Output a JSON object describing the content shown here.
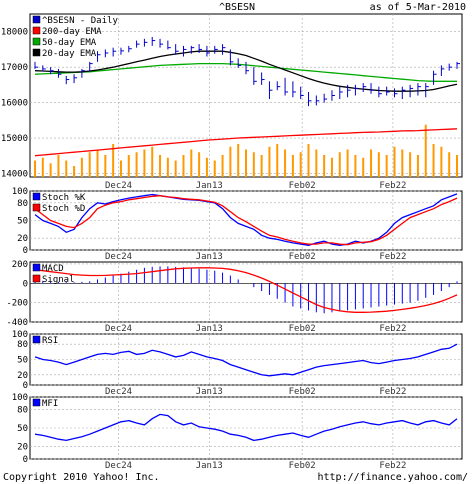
{
  "header": {
    "symbol": "^BSESN",
    "as_of": "as of  5-Mar-2010"
  },
  "footer": {
    "copyright": "Copyright 2010 Yahoo! Inc.",
    "url": "http://finance.yahoo.com/"
  },
  "colors": {
    "price": "#0000cc",
    "ema200": "#ff0000",
    "ema50": "#00aa00",
    "ema20": "#000000",
    "volume": "#ff9900",
    "stoch_k": "#0000ff",
    "stoch_d": "#ff0000",
    "macd": "#0000ff",
    "signal": "#ff0000",
    "rsi": "#0000ff",
    "mfi": "#0000ff",
    "grid": "#aaaaaa",
    "frame": "#000000",
    "x_label": "#333333"
  },
  "x_ticks": [
    "Dec24",
    "Jan13",
    "Feb02",
    "Feb22"
  ],
  "chart_data": [
    {
      "type": "line",
      "panel": "price",
      "legend": [
        "^BSESN - Daily",
        "200-day EMA",
        "50-day EMA",
        "20-day EMA"
      ],
      "y_ticks": [
        "18000",
        "17000",
        "16000",
        "15000",
        "14000"
      ],
      "ylim": [
        13900,
        18500
      ],
      "grid": true,
      "x": [
        "Dec 14",
        "Dec 15",
        "Dec 16",
        "Dec 17",
        "Dec 18",
        "Dec 21",
        "Dec 22",
        "Dec 23",
        "Dec 24",
        "Dec 29",
        "Dec 30",
        "Dec 31",
        "Jan 4",
        "Jan 5",
        "Jan 6",
        "Jan 7",
        "Jan 8",
        "Jan 11",
        "Jan 12",
        "Jan 13",
        "Jan 14",
        "Jan 15",
        "Jan 18",
        "Jan 19",
        "Jan 20",
        "Jan 21",
        "Jan 22",
        "Jan 25",
        "Jan 27",
        "Jan 28",
        "Jan 29",
        "Feb 1",
        "Feb 2",
        "Feb 3",
        "Feb 4",
        "Feb 5",
        "Feb 8",
        "Feb 9",
        "Feb 10",
        "Feb 11",
        "Feb 15",
        "Feb 16",
        "Feb 17",
        "Feb 18",
        "Feb 19",
        "Feb 22",
        "Feb 23",
        "Feb 24",
        "Feb 25",
        "Feb 26",
        "Mar 1",
        "Mar 2",
        "Mar 3",
        "Mar 4",
        "Mar 5"
      ],
      "series": [
        {
          "name": "^BSESN - Daily",
          "kind": "bars",
          "low": [
            16950,
            16880,
            16800,
            16700,
            16520,
            16550,
            16700,
            16880,
            17150,
            17280,
            17300,
            17350,
            17420,
            17550,
            17580,
            17600,
            17550,
            17500,
            17350,
            17300,
            17380,
            17400,
            17300,
            17380,
            17350,
            17050,
            16980,
            16800,
            16500,
            16500,
            16100,
            16350,
            16200,
            16150,
            16100,
            15900,
            15920,
            16000,
            16050,
            16100,
            16150,
            16200,
            16300,
            16250,
            16150,
            16200,
            16150,
            16100,
            16150,
            16200,
            16150,
            16500,
            16750,
            16900,
            16950
          ],
          "high": [
            17150,
            17050,
            17000,
            16950,
            16750,
            16800,
            16950,
            17150,
            17450,
            17500,
            17550,
            17550,
            17600,
            17750,
            17800,
            17850,
            17800,
            17750,
            17650,
            17600,
            17600,
            17650,
            17600,
            17600,
            17650,
            17500,
            17250,
            17150,
            17000,
            16850,
            16600,
            16600,
            16700,
            16600,
            16450,
            16300,
            16200,
            16250,
            16350,
            16450,
            16500,
            16500,
            16550,
            16550,
            16450,
            16450,
            16400,
            16450,
            16500,
            16550,
            16550,
            16900,
            17050,
            17100,
            17150
          ],
          "close": [
            17000,
            16950,
            16900,
            16800,
            16650,
            16700,
            16900,
            17100,
            17350,
            17400,
            17450,
            17460,
            17520,
            17650,
            17700,
            17750,
            17650,
            17550,
            17450,
            17500,
            17550,
            17500,
            17400,
            17500,
            17550,
            17150,
            17050,
            16900,
            16600,
            16650,
            16350,
            16450,
            16300,
            16300,
            16200,
            16050,
            16050,
            16100,
            16200,
            16300,
            16350,
            16400,
            16450,
            16350,
            16250,
            16300,
            16250,
            16350,
            16400,
            16450,
            16450,
            16800,
            16950,
            17000,
            17100
          ]
        },
        {
          "name": "200-day EMA",
          "values": [
            14500,
            14520,
            14540,
            14560,
            14580,
            14600,
            14620,
            14640,
            14660,
            14680,
            14700,
            14720,
            14740,
            14760,
            14780,
            14800,
            14820,
            14840,
            14860,
            14880,
            14900,
            14920,
            14940,
            14955,
            14970,
            14985,
            15000,
            15010,
            15020,
            15030,
            15040,
            15050,
            15060,
            15070,
            15080,
            15090,
            15100,
            15110,
            15120,
            15130,
            15140,
            15150,
            15160,
            15165,
            15170,
            15180,
            15190,
            15200,
            15205,
            15210,
            15220,
            15230,
            15240,
            15250,
            15260
          ]
        },
        {
          "name": "50-day EMA",
          "values": [
            16800,
            16810,
            16820,
            16830,
            16840,
            16850,
            16860,
            16870,
            16890,
            16910,
            16930,
            16950,
            16970,
            16990,
            17010,
            17030,
            17050,
            17060,
            17070,
            17080,
            17090,
            17100,
            17100,
            17100,
            17100,
            17090,
            17080,
            17060,
            17040,
            17020,
            17000,
            16980,
            16960,
            16940,
            16920,
            16900,
            16880,
            16860,
            16840,
            16820,
            16800,
            16780,
            16760,
            16740,
            16720,
            16700,
            16680,
            16660,
            16640,
            16620,
            16610,
            16600,
            16600,
            16600,
            16600
          ]
        },
        {
          "name": "20-day EMA",
          "values": [
            16900,
            16890,
            16880,
            16870,
            16860,
            16860,
            16870,
            16890,
            16920,
            16960,
            17000,
            17050,
            17100,
            17150,
            17200,
            17250,
            17300,
            17340,
            17370,
            17400,
            17430,
            17450,
            17450,
            17450,
            17450,
            17420,
            17380,
            17330,
            17250,
            17170,
            17080,
            17000,
            16920,
            16840,
            16760,
            16680,
            16610,
            16550,
            16500,
            16460,
            16430,
            16400,
            16380,
            16360,
            16340,
            16330,
            16320,
            16320,
            16320,
            16330,
            16340,
            16370,
            16420,
            16470,
            16520
          ]
        }
      ]
    },
    {
      "type": "bar",
      "panel": "volume",
      "series": [
        {
          "name": "Volume",
          "values": [
            0.3,
            0.35,
            0.25,
            0.4,
            0.3,
            0.2,
            0.35,
            0.45,
            0.5,
            0.4,
            0.6,
            0.3,
            0.4,
            0.45,
            0.5,
            0.55,
            0.4,
            0.35,
            0.3,
            0.4,
            0.5,
            0.45,
            0.35,
            0.3,
            0.4,
            0.55,
            0.6,
            0.5,
            0.45,
            0.4,
            0.55,
            0.6,
            0.5,
            0.4,
            0.45,
            0.6,
            0.5,
            0.4,
            0.35,
            0.45,
            0.5,
            0.4,
            0.35,
            0.5,
            0.45,
            0.4,
            0.55,
            0.5,
            0.45,
            0.4,
            0.95,
            0.6,
            0.55,
            0.45,
            0.4
          ]
        }
      ]
    },
    {
      "type": "line",
      "panel": "stochastic",
      "legend": [
        "Stoch %K",
        "Stoch %D"
      ],
      "y_ticks": [
        "100",
        "80",
        "50",
        "20",
        "0"
      ],
      "ylim": [
        0,
        100
      ],
      "grid": true,
      "series": [
        {
          "name": "Stoch %K",
          "values": [
            60,
            50,
            45,
            40,
            30,
            35,
            55,
            70,
            80,
            78,
            82,
            85,
            88,
            90,
            92,
            94,
            92,
            90,
            88,
            86,
            85,
            84,
            82,
            80,
            70,
            55,
            45,
            40,
            35,
            25,
            20,
            18,
            15,
            12,
            10,
            8,
            12,
            15,
            10,
            8,
            10,
            15,
            12,
            15,
            20,
            30,
            45,
            55,
            60,
            65,
            70,
            75,
            85,
            90,
            95
          ]
        },
        {
          "name": "Stoch %D",
          "values": [
            70,
            60,
            50,
            45,
            40,
            38,
            45,
            55,
            70,
            76,
            80,
            82,
            85,
            87,
            89,
            91,
            92,
            90,
            89,
            87,
            86,
            85,
            83,
            81,
            75,
            65,
            55,
            48,
            40,
            32,
            25,
            22,
            18,
            15,
            12,
            10,
            10,
            12,
            12,
            10,
            9,
            12,
            13,
            14,
            18,
            25,
            35,
            45,
            55,
            60,
            65,
            70,
            77,
            82,
            88
          ]
        }
      ]
    },
    {
      "type": "line",
      "panel": "macd",
      "legend": [
        "MACD",
        "Signal"
      ],
      "y_ticks": [
        "200",
        "0",
        "-200",
        "-400"
      ],
      "ylim": [
        -400,
        220
      ],
      "grid": true,
      "series": [
        {
          "name": "MACD",
          "kind": "histogram",
          "values": [
            30,
            25,
            20,
            15,
            12,
            10,
            15,
            20,
            40,
            60,
            80,
            100,
            120,
            140,
            160,
            170,
            175,
            175,
            170,
            165,
            160,
            150,
            140,
            130,
            110,
            80,
            40,
            0,
            -40,
            -80,
            -120,
            -160,
            -200,
            -240,
            -260,
            -280,
            -300,
            -310,
            -300,
            -290,
            -280,
            -270,
            -260,
            -250,
            -240,
            -230,
            -220,
            -210,
            -200,
            -180,
            -150,
            -120,
            -80,
            -40,
            20
          ]
        },
        {
          "name": "Signal",
          "values": [
            140,
            130,
            120,
            110,
            100,
            90,
            85,
            80,
            80,
            82,
            86,
            90,
            95,
            100,
            110,
            120,
            130,
            140,
            150,
            155,
            158,
            160,
            160,
            158,
            154,
            145,
            130,
            110,
            85,
            55,
            20,
            -20,
            -60,
            -100,
            -140,
            -180,
            -220,
            -250,
            -270,
            -285,
            -295,
            -300,
            -300,
            -298,
            -294,
            -288,
            -280,
            -270,
            -258,
            -245,
            -230,
            -210,
            -185,
            -155,
            -120
          ]
        }
      ]
    },
    {
      "type": "line",
      "panel": "rsi",
      "legend": [
        "RSI"
      ],
      "y_ticks": [
        "100",
        "80",
        "50",
        "20",
        "0"
      ],
      "ylim": [
        0,
        100
      ],
      "grid": true,
      "series": [
        {
          "name": "RSI",
          "values": [
            55,
            50,
            48,
            45,
            40,
            45,
            50,
            55,
            60,
            62,
            60,
            64,
            66,
            60,
            62,
            68,
            65,
            60,
            55,
            58,
            65,
            60,
            55,
            52,
            48,
            40,
            35,
            30,
            25,
            20,
            18,
            20,
            22,
            20,
            25,
            30,
            35,
            38,
            40,
            42,
            44,
            46,
            48,
            44,
            42,
            45,
            48,
            50,
            52,
            55,
            60,
            65,
            70,
            72,
            80
          ]
        }
      ]
    },
    {
      "type": "line",
      "panel": "mfi",
      "legend": [
        "MFI"
      ],
      "y_ticks": [
        "100",
        "80",
        "50",
        "20",
        "0"
      ],
      "ylim": [
        0,
        100
      ],
      "grid": true,
      "series": [
        {
          "name": "MFI",
          "values": [
            40,
            38,
            35,
            32,
            30,
            33,
            36,
            40,
            45,
            50,
            55,
            60,
            62,
            58,
            55,
            65,
            72,
            70,
            60,
            55,
            58,
            52,
            50,
            48,
            45,
            40,
            38,
            35,
            30,
            32,
            35,
            38,
            40,
            42,
            38,
            35,
            40,
            45,
            48,
            52,
            55,
            58,
            60,
            57,
            55,
            58,
            60,
            62,
            58,
            55,
            60,
            62,
            58,
            55,
            65
          ]
        }
      ]
    }
  ]
}
